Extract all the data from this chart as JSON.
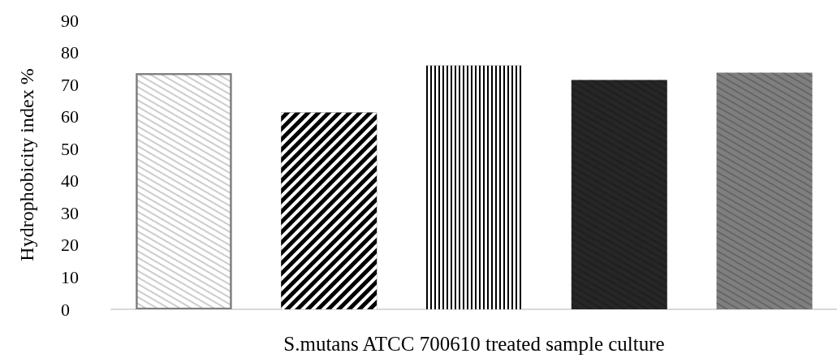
{
  "chart_data": {
    "type": "bar",
    "xlabel": "S.mutans ATCC 700610 treated sample culture",
    "ylabel": "Hydrophobicity index %",
    "categories": [
      null,
      null,
      null,
      null,
      null
    ],
    "values": [
      73.5,
      61.3,
      75.9,
      71.4,
      73.7
    ],
    "colors": [
      "#ffffff",
      "#000000",
      "#000000",
      "#262626",
      "#7f7f7f"
    ],
    "ylim": [
      0,
      90
    ],
    "yticks": [
      0,
      10,
      20,
      30,
      40,
      50,
      60,
      70,
      80,
      90
    ],
    "grid": false
  }
}
